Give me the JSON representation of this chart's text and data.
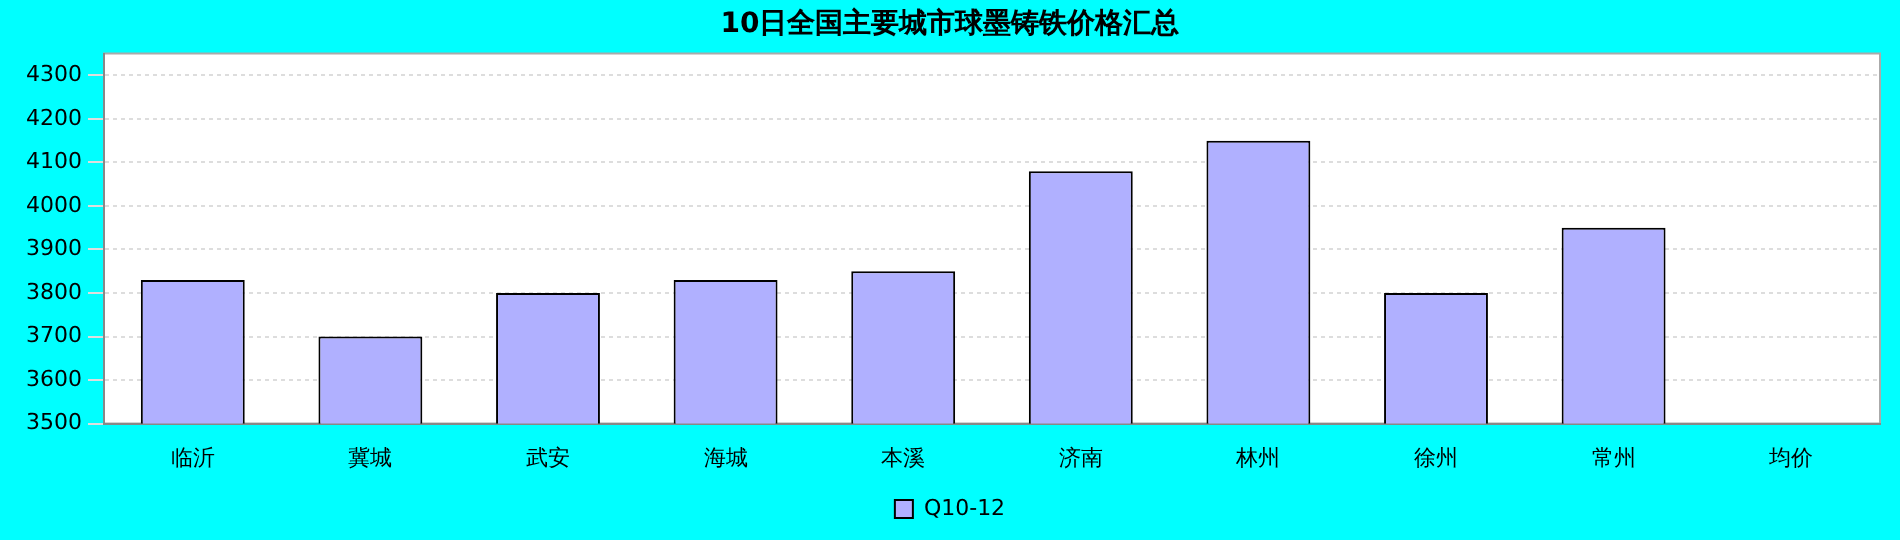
{
  "chart_data": {
    "type": "bar",
    "title": "10日全国主要城市球墨铸铁价格汇总",
    "categories": [
      "临沂",
      "冀城",
      "武安",
      "海城",
      "本溪",
      "济南",
      "林州",
      "徐州",
      "常州",
      "均价"
    ],
    "series": [
      {
        "name": "Q10-12",
        "color": "#b0b0ff",
        "values": [
          3830,
          3700,
          3800,
          3830,
          3850,
          4080,
          4150,
          3800,
          3950,
          null
        ]
      }
    ],
    "ylim": [
      3500,
      4350
    ],
    "yticks": [
      3500,
      3600,
      3700,
      3800,
      3900,
      4000,
      4100,
      4200,
      4300
    ],
    "grid": "y",
    "legend": "bottom"
  }
}
